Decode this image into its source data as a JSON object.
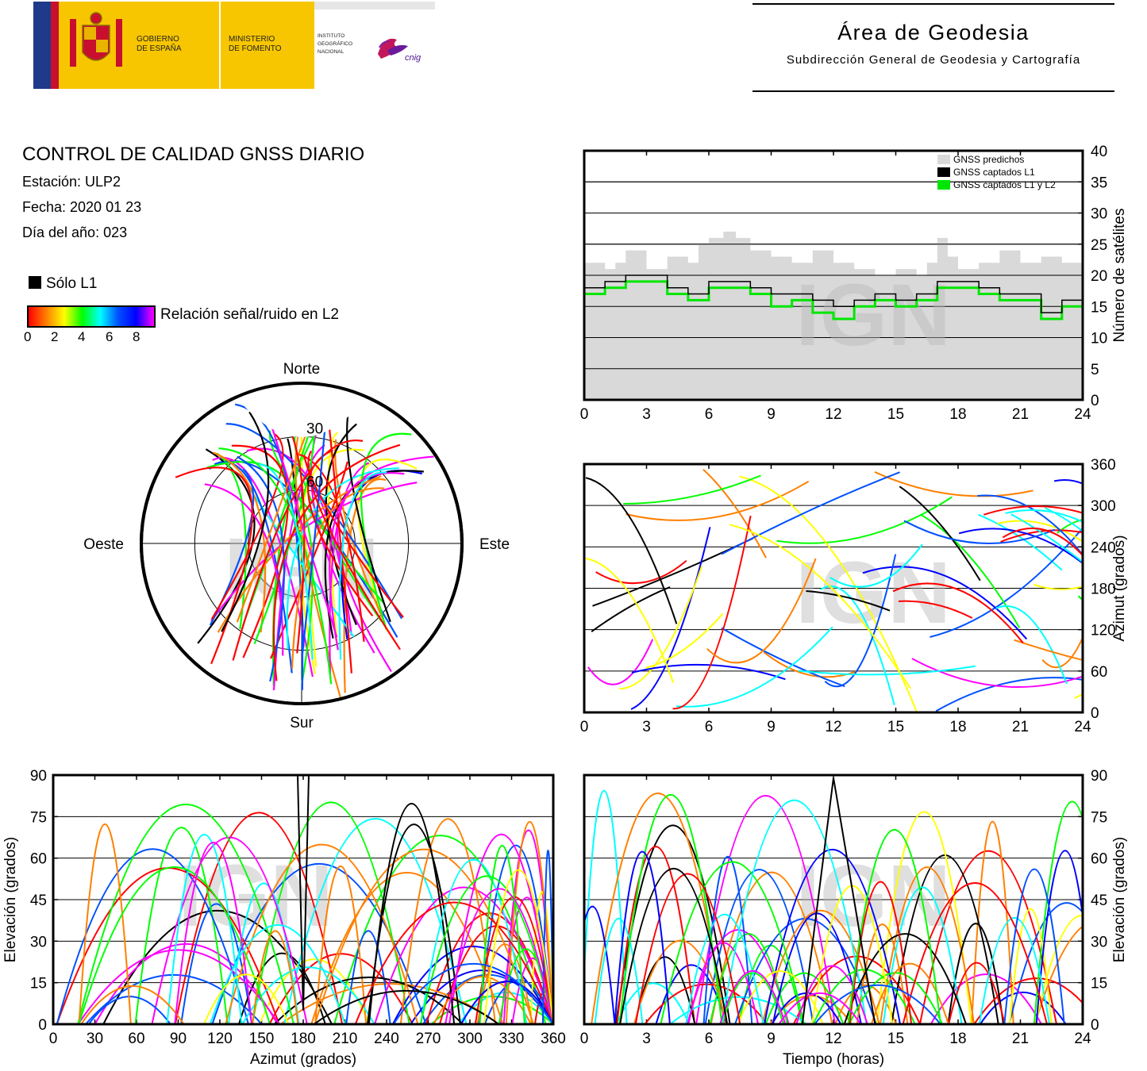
{
  "header": {
    "gov_line1": "GOBIERNO",
    "gov_line2": "DE ESPAÑA",
    "min_line1": "MINISTERIO",
    "min_line2": "DE FOMENTO",
    "inst_line1": "INSTITUTO",
    "inst_line2": "GEOGRÁFICO",
    "inst_line3": "NACIONAL",
    "cnig_logo": "cnig",
    "area_title": "Área de Geodesia",
    "area_subtitle": "Subdirección General de Geodesia y Cartografía"
  },
  "report": {
    "title": "CONTROL DE CALIDAD GNSS DIARIO",
    "station": "Estación: ULP2",
    "date": "Fecha: 2020 01 23",
    "doy": "Día del año: 023"
  },
  "legend": {
    "l1_only": "Sólo L1",
    "snr_label": "Relación señal/ruido en L2",
    "snr_ticks": [
      "0",
      "2",
      "4",
      "6",
      "8"
    ],
    "snr_colors": [
      "#ff0000",
      "#ff8000",
      "#ffff00",
      "#00ff00",
      "#00ffff",
      "#0050ff",
      "#0000ff",
      "#ff00ff"
    ]
  },
  "watermark": "IGN",
  "colors": {
    "predicted": "#d9d9d9",
    "l1": "#000000",
    "l1l2": "#00e600",
    "grid": "#000000"
  },
  "chart_data": [
    {
      "id": "satellites",
      "type": "area",
      "xlabel": "",
      "ylabel": "Número de satélites",
      "xlim": [
        0,
        24
      ],
      "ylim": [
        0,
        40
      ],
      "xticks": [
        "0",
        "3",
        "6",
        "9",
        "12",
        "15",
        "18",
        "21",
        "24"
      ],
      "yticks": [
        "0",
        "5",
        "10",
        "15",
        "20",
        "25",
        "30",
        "35",
        "40"
      ],
      "legend_position": "top-right",
      "series": [
        {
          "name": "GNSS predichos",
          "x": [
            0,
            1,
            1.5,
            2,
            3,
            4,
            5,
            5.5,
            6,
            6.7,
            7.3,
            8,
            9,
            10,
            11,
            12,
            13,
            14,
            15,
            16,
            16.5,
            17,
            17.5,
            18,
            19,
            20,
            21,
            22,
            23,
            24
          ],
          "values": [
            22,
            21,
            22,
            24,
            21,
            23,
            22,
            25,
            26,
            27,
            26,
            24,
            23,
            22,
            24,
            22,
            21,
            20,
            21,
            20,
            22,
            26,
            23,
            21,
            22,
            24,
            22,
            23,
            22,
            21
          ]
        },
        {
          "name": "GNSS captados L1",
          "x": [
            0,
            1,
            2,
            3,
            4,
            5,
            6,
            7,
            8,
            9,
            10,
            11,
            12,
            13,
            14,
            15,
            16,
            17,
            18,
            19,
            20,
            21,
            22,
            23,
            24
          ],
          "values": [
            18,
            19,
            20,
            20,
            18,
            17,
            19,
            19,
            18,
            17,
            17,
            16,
            15,
            16,
            17,
            16,
            17,
            19,
            19,
            18,
            17,
            17,
            14,
            16,
            19
          ]
        },
        {
          "name": "GNSS captados L1 y L2",
          "x": [
            0,
            1,
            2,
            3,
            4,
            5,
            6,
            7,
            8,
            9,
            10,
            11,
            12,
            13,
            14,
            15,
            16,
            17,
            18,
            19,
            20,
            21,
            22,
            23,
            24
          ],
          "values": [
            17,
            18,
            19,
            19,
            17,
            16,
            18,
            18,
            17,
            15,
            16,
            14,
            13,
            15,
            16,
            15,
            16,
            18,
            18,
            17,
            16,
            16,
            13,
            15,
            18
          ]
        }
      ]
    },
    {
      "id": "skyplot",
      "type": "scatter",
      "title": "",
      "labels": {
        "north": "Norte",
        "south": "Sur",
        "east": "Este",
        "west": "Oeste"
      },
      "rings": [
        "30",
        "60"
      ],
      "ylim": [
        0,
        90
      ]
    },
    {
      "id": "azimuth_time",
      "type": "scatter",
      "ylabel": "Azimut (grados)",
      "xlim": [
        0,
        24
      ],
      "ylim": [
        0,
        360
      ],
      "xticks": [
        "0",
        "3",
        "6",
        "9",
        "12",
        "15",
        "18",
        "21",
        "24"
      ],
      "yticks": [
        "0",
        "60",
        "120",
        "180",
        "240",
        "300",
        "360"
      ]
    },
    {
      "id": "elev_azimuth",
      "type": "scatter",
      "xlabel": "Azimut (grados)",
      "ylabel": "Elevación (grados)",
      "xlim": [
        0,
        360
      ],
      "ylim": [
        0,
        90
      ],
      "xticks": [
        "0",
        "30",
        "60",
        "90",
        "120",
        "150",
        "180",
        "210",
        "240",
        "270",
        "300",
        "330",
        "360"
      ],
      "yticks": [
        "0",
        "15",
        "30",
        "45",
        "60",
        "75",
        "90"
      ]
    },
    {
      "id": "elev_time",
      "type": "scatter",
      "xlabel": "Tiempo (horas)",
      "ylabel": "Elevación (grados)",
      "xlim": [
        0,
        24
      ],
      "ylim": [
        0,
        90
      ],
      "xticks": [
        "0",
        "3",
        "6",
        "9",
        "12",
        "15",
        "18",
        "21",
        "24"
      ],
      "yticks": [
        "0",
        "15",
        "30",
        "45",
        "60",
        "75",
        "90"
      ]
    }
  ]
}
